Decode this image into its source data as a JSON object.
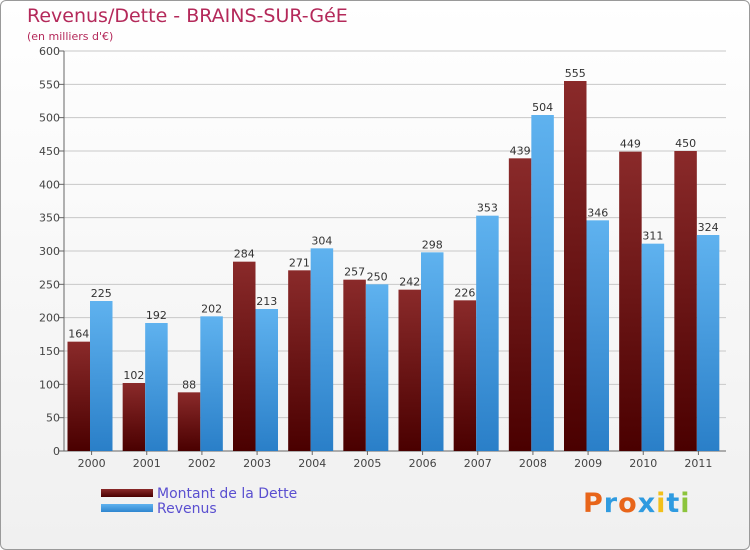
{
  "header": {
    "title": "Revenus/Dette - BRAINS-SUR-GéE",
    "subtitle": "(en milliers d'€)"
  },
  "chart_data": {
    "type": "bar",
    "title": "Revenus/Dette - BRAINS-SUR-GéE",
    "ylabel": "(en milliers d'€)",
    "xlabel": "",
    "ylim": [
      0,
      600
    ],
    "yticks": [
      0,
      50,
      100,
      150,
      200,
      250,
      300,
      350,
      400,
      450,
      500,
      550,
      600
    ],
    "grid": true,
    "categories": [
      "2000",
      "2001",
      "2002",
      "2003",
      "2004",
      "2005",
      "2006",
      "2007",
      "2008",
      "2009",
      "2010",
      "2011"
    ],
    "series": [
      {
        "name": "Montant de la Dette",
        "values": [
          164,
          102,
          88,
          284,
          271,
          257,
          242,
          226,
          439,
          555,
          449,
          450
        ],
        "color": "#7a1f1f"
      },
      {
        "name": "Revenus",
        "values": [
          225,
          192,
          202,
          213,
          304,
          250,
          298,
          353,
          504,
          346,
          311,
          324
        ],
        "color": "#4aa3e8"
      }
    ],
    "legend": "bottom-left"
  },
  "legend": {
    "items": [
      {
        "label": "Montant de la Dette"
      },
      {
        "label": "Revenus"
      }
    ]
  },
  "logo": {
    "text": "Proxiti",
    "colors": [
      "#e8651a",
      "#2f9be0",
      "#e8651a",
      "#2f9be0",
      "#f2c01a",
      "#2f9be0",
      "#8cc43c"
    ]
  }
}
